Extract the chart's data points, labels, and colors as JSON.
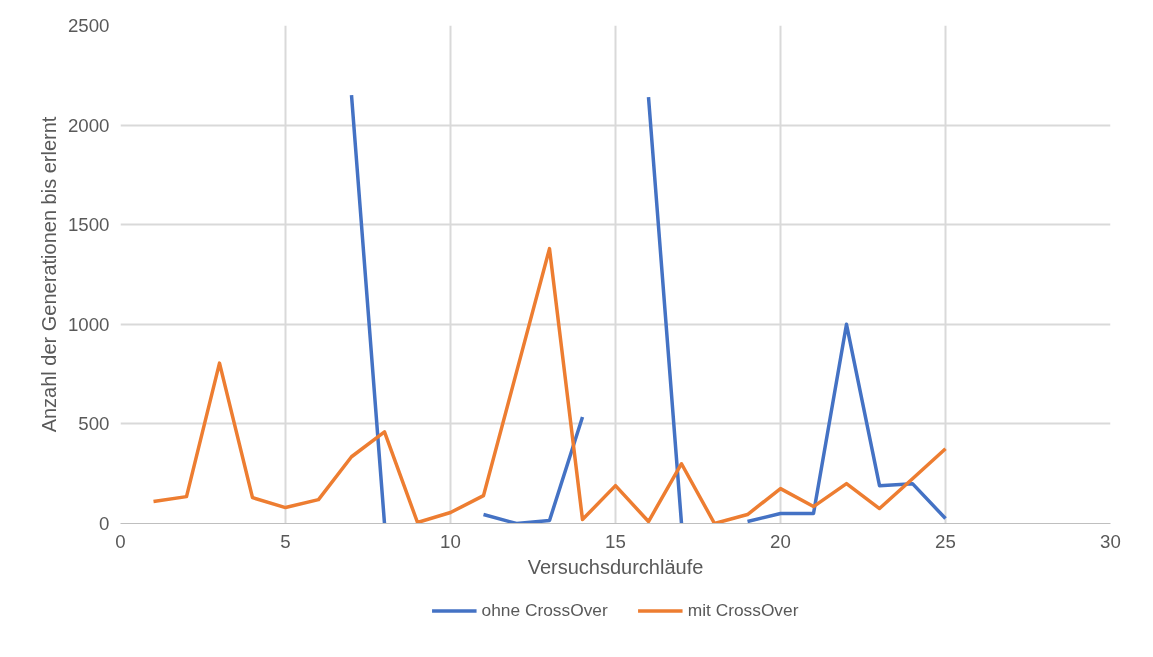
{
  "chart_data": {
    "type": "line",
    "xlabel": "Versuchsdurchläufe",
    "ylabel": "Anzahl der Generationen bis erlernt",
    "x": [
      1,
      2,
      3,
      4,
      5,
      6,
      7,
      8,
      9,
      10,
      11,
      12,
      13,
      14,
      15,
      16,
      17,
      18,
      19,
      20,
      21,
      22,
      23,
      24,
      25
    ],
    "series": [
      {
        "name": "ohne CrossOver",
        "color": "#4472c4",
        "values": [
          null,
          null,
          null,
          null,
          null,
          null,
          2150,
          0,
          null,
          null,
          45,
          0,
          15,
          535,
          null,
          2140,
          0,
          null,
          10,
          50,
          50,
          1000,
          190,
          200,
          25
        ]
      },
      {
        "name": "mit CrossOver",
        "color": "#ed7d31",
        "values": [
          110,
          135,
          805,
          130,
          80,
          120,
          335,
          460,
          5,
          55,
          140,
          760,
          1380,
          20,
          190,
          10,
          300,
          0,
          45,
          175,
          85,
          200,
          75,
          225,
          375
        ]
      }
    ],
    "xlim": [
      0,
      30
    ],
    "xticks": [
      0,
      5,
      10,
      15,
      20,
      25,
      30
    ],
    "ylim": [
      0,
      2500
    ],
    "yticks": [
      0,
      500,
      1000,
      1500,
      2000,
      2500
    ],
    "grid": true,
    "legend": "bottom",
    "marker": "none",
    "line_style": "solid"
  }
}
